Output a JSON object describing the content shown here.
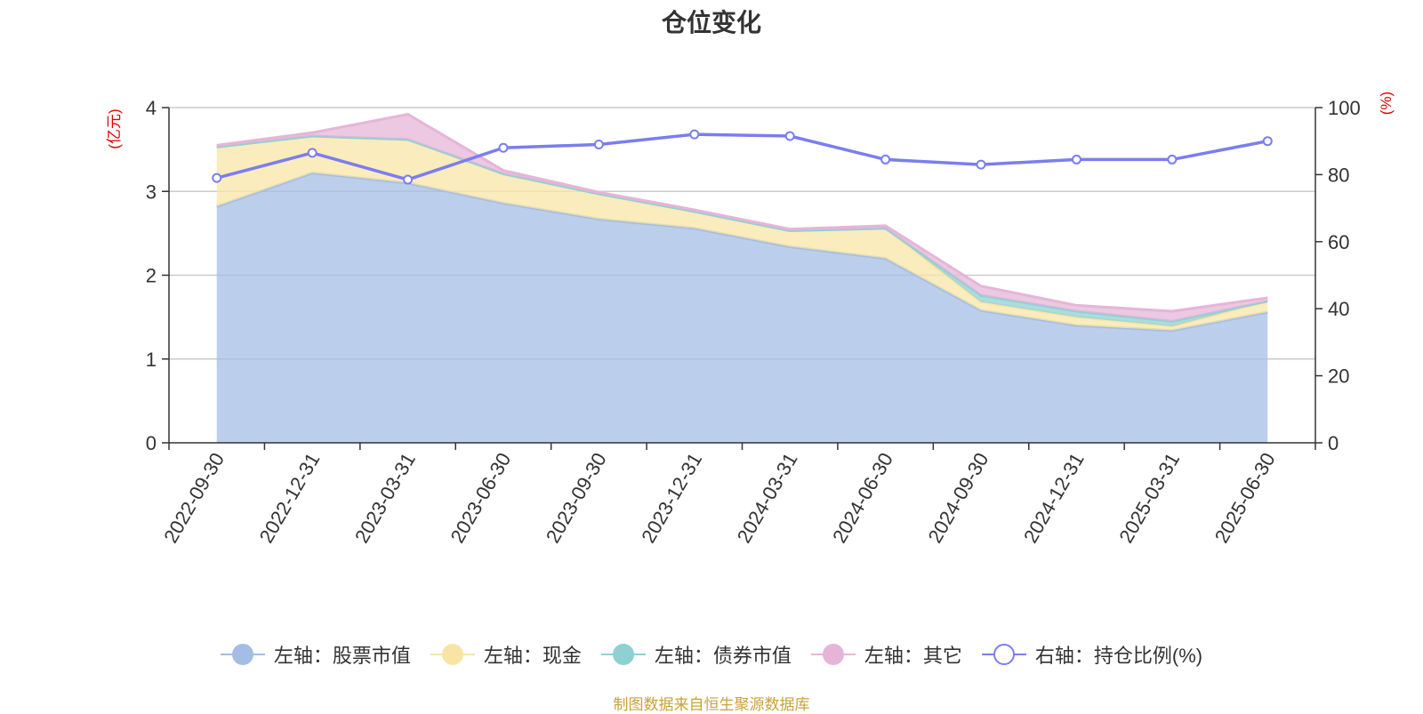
{
  "chart_data": {
    "type": "area",
    "title": "仓位变化",
    "y_left_label": "(亿元)",
    "y_right_label": "(%)",
    "y_left_lim": [
      0,
      4
    ],
    "y_left_ticks": [
      "0",
      "1",
      "2",
      "3",
      "4"
    ],
    "y_right_lim": [
      0,
      100
    ],
    "y_right_ticks": [
      "0",
      "20",
      "40",
      "60",
      "80",
      "100"
    ],
    "grid": true,
    "legend_position": "bottom",
    "categories": [
      "2022-09-30",
      "2022-12-31",
      "2023-03-31",
      "2023-06-30",
      "2023-09-30",
      "2023-12-31",
      "2024-03-31",
      "2024-06-30",
      "2024-09-30",
      "2024-12-31",
      "2025-03-31",
      "2025-06-30"
    ],
    "series": [
      {
        "name": "左轴：股票市值",
        "axis": "left",
        "type": "area",
        "color": "#a4bde4",
        "values": [
          2.82,
          3.22,
          3.1,
          2.86,
          2.67,
          2.56,
          2.34,
          2.2,
          1.58,
          1.4,
          1.34,
          1.56
        ]
      },
      {
        "name": "左轴：现金",
        "axis": "left",
        "type": "area",
        "color": "#f8e5a6",
        "values": [
          0.71,
          0.44,
          0.52,
          0.35,
          0.3,
          0.2,
          0.19,
          0.36,
          0.1,
          0.1,
          0.05,
          0.13
        ]
      },
      {
        "name": "左轴：债券市值",
        "axis": "left",
        "type": "area",
        "color": "#8fd0d3",
        "values": [
          0,
          0,
          0,
          0,
          0,
          0,
          0,
          0,
          0.08,
          0.07,
          0.06,
          0
        ]
      },
      {
        "name": "左轴：其它",
        "axis": "left",
        "type": "area",
        "color": "#e5b5d8",
        "values": [
          0.02,
          0.04,
          0.3,
          0.04,
          0.02,
          0.02,
          0.02,
          0.03,
          0.11,
          0.07,
          0.12,
          0.04
        ]
      },
      {
        "name": "右轴：持仓比例(%)",
        "axis": "right",
        "type": "line",
        "color": "#7b7def",
        "values": [
          79,
          86.5,
          78.5,
          88,
          89,
          92,
          91.5,
          84.5,
          83,
          84.5,
          84.5,
          90
        ]
      }
    ]
  },
  "source_text": "制图数据来自恒生聚源数据库"
}
